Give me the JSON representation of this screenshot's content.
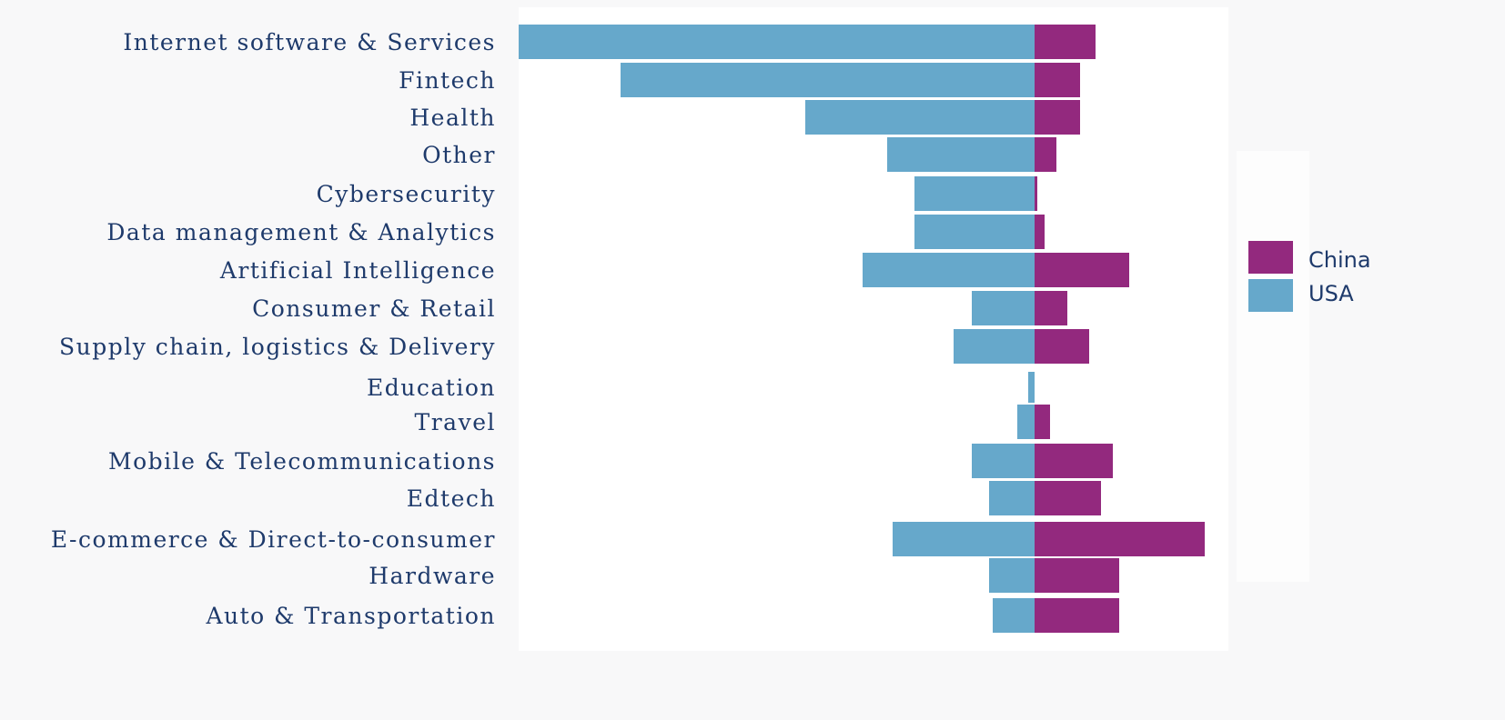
{
  "chart_data": {
    "type": "bar",
    "orientation": "horizontal-diverging",
    "title": "",
    "xlabel": "",
    "ylabel": "",
    "grid": false,
    "legend_position": "right",
    "categories": [
      "Internet software & Services",
      "Fintech",
      "Health",
      "Other",
      "Cybersecurity",
      "Data management & Analytics",
      "Artificial Intelligence",
      "Consumer & Retail",
      "Supply chain, logistics & Delivery",
      "Education",
      "Travel",
      "Mobile & Telecommunications",
      "Edtech",
      "E-commerce & Direct-to-consumer",
      "Hardware",
      "Auto & Transportation"
    ],
    "series": [
      {
        "name": "China",
        "color": "#93297e",
        "direction": "right",
        "values": [
          67,
          50,
          50,
          24,
          3,
          11,
          104,
          36,
          60,
          0,
          17,
          86,
          73,
          187,
          93,
          93
        ]
      },
      {
        "name": "USA",
        "color": "#66a8cb",
        "direction": "left",
        "values": [
          567,
          455,
          252,
          162,
          132,
          132,
          189,
          69,
          89,
          7,
          19,
          69,
          50,
          156,
          50,
          46
        ]
      }
    ],
    "xlim": [
      -570,
      215
    ],
    "value_units": "relative (no axis scale shown)"
  },
  "legend": {
    "items": [
      {
        "label": "China",
        "color": "#93297e"
      },
      {
        "label": "USA",
        "color": "#66a8cb"
      }
    ]
  }
}
